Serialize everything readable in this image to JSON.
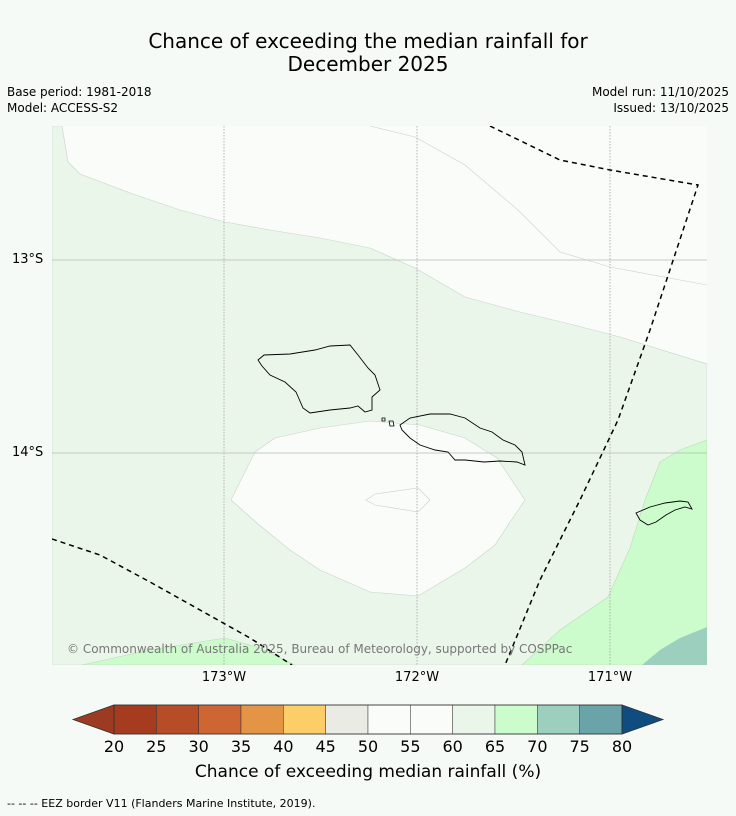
{
  "title_line1": "Chance of exceeding the median rainfall for",
  "title_line2": "December 2025",
  "meta": {
    "base_period": "Base period: 1981-2018",
    "model": "Model: ACCESS-S2",
    "model_run": "Model run: 11/10/2025",
    "issued": "Issued: 13/10/2025"
  },
  "map": {
    "latitude_labels": [
      "13°S",
      "14°S"
    ],
    "longitude_labels": [
      "173°W",
      "172°W",
      "171°W"
    ],
    "copyright": "© Commonwealth of Australia 2025, Bureau of Meteorology, supported by COSPPac"
  },
  "colorbar": {
    "ticks": [
      "20",
      "25",
      "30",
      "35",
      "40",
      "45",
      "50",
      "55",
      "60",
      "65",
      "70",
      "75",
      "80"
    ],
    "colors": [
      "#a53c20",
      "#b84c27",
      "#cf6532",
      "#e39444",
      "#fdcd68",
      "#ebebe5",
      "#f9fcf9",
      "#f9fcf9",
      "#ebf6eb",
      "#ccfccc",
      "#9ccfbd",
      "#6aa4a9",
      "#3e799a"
    ],
    "under_color": "#9d3a22",
    "over_color": "#0f4c7f",
    "label": "Chance of exceeding median rainfall (%)"
  },
  "legend_note": "-- -- -- EEZ border V11 (Flanders Marine Institute, 2019)."
}
